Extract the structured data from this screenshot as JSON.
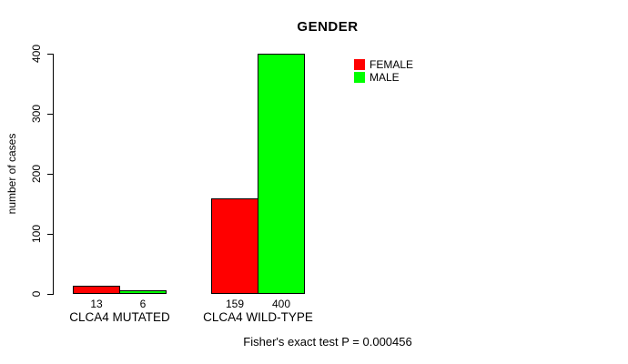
{
  "chart_data": {
    "type": "bar",
    "title": "GENDER",
    "xlabel": "",
    "ylabel": "number of cases",
    "ylim": [
      0,
      400
    ],
    "yticks": [
      0,
      100,
      200,
      300,
      400
    ],
    "categories": [
      "CLCA4 MUTATED",
      "CLCA4 WILD-TYPE"
    ],
    "series": [
      {
        "name": "FEMALE",
        "color": "#ff0000",
        "values": [
          13,
          159
        ]
      },
      {
        "name": "MALE",
        "color": "#00ff00",
        "values": [
          6,
          400
        ]
      }
    ],
    "bar_value_labels": [
      [
        13,
        6
      ],
      [
        159,
        400
      ]
    ],
    "annotation": "Fisher's exact test P = 0.000456",
    "legend_position": "top-right",
    "grid": false,
    "background_color": "#ffffff",
    "axis_color": "#000000"
  }
}
